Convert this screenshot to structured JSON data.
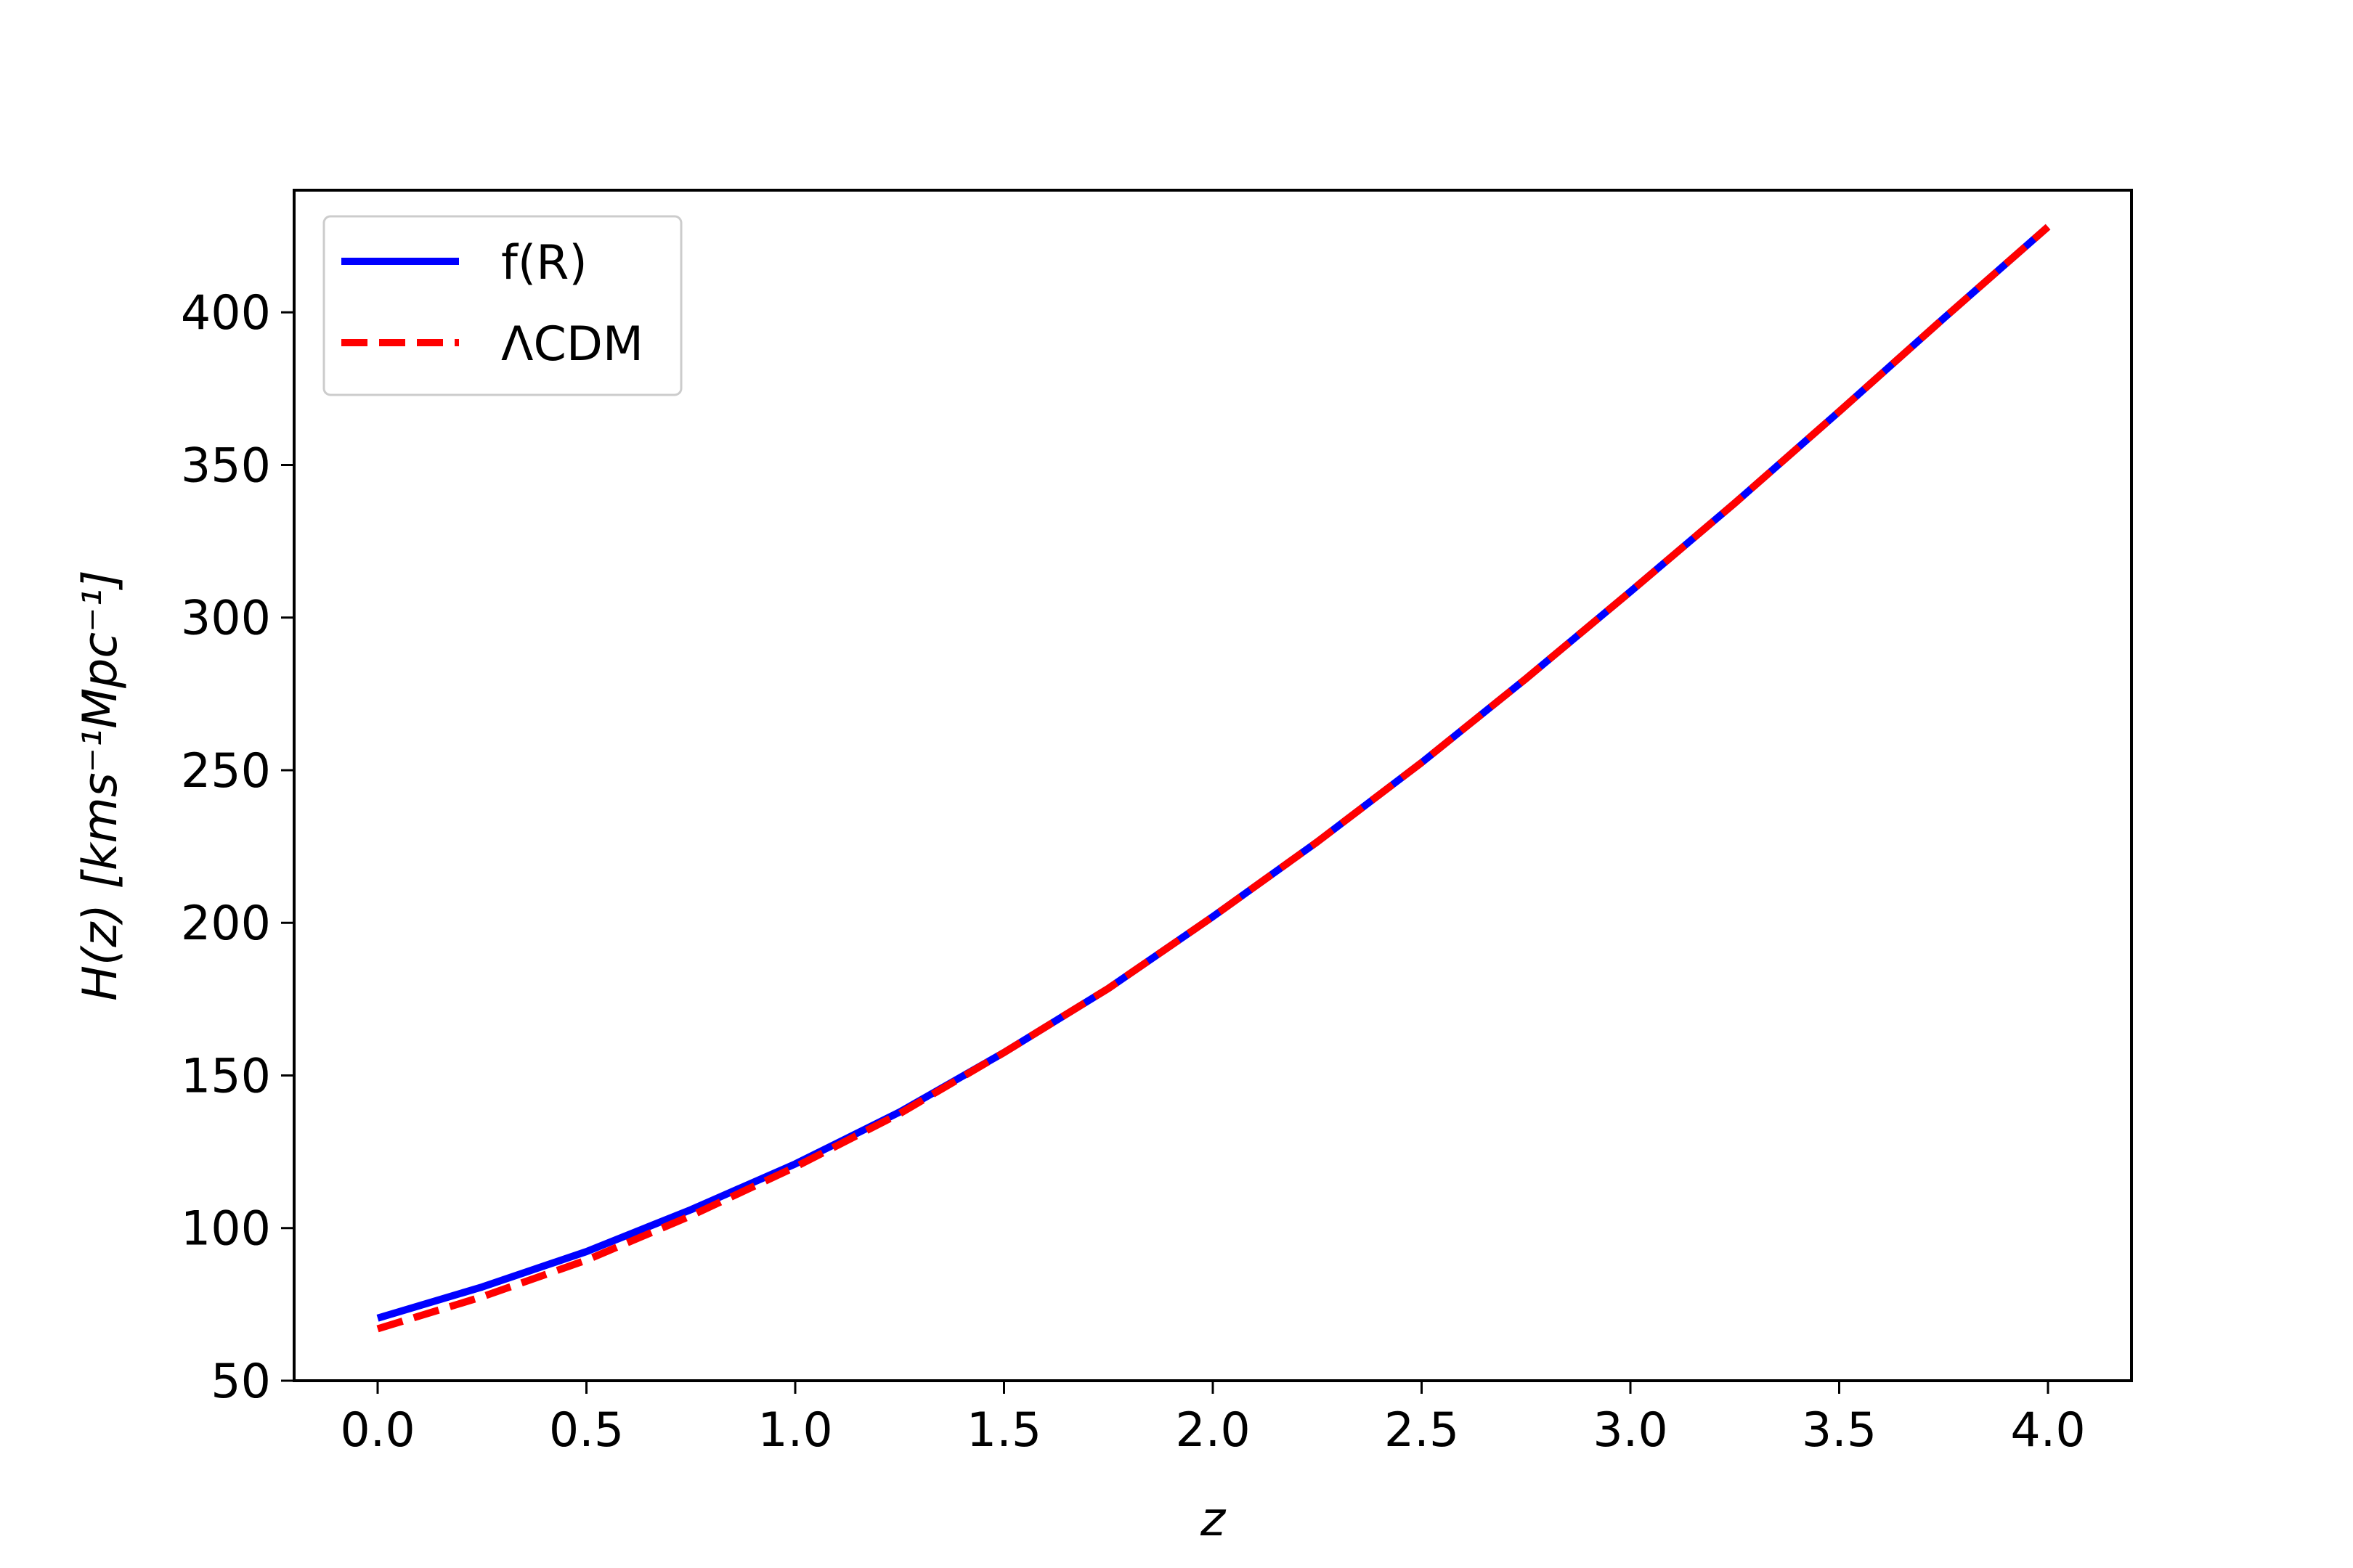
{
  "chart_data": {
    "type": "line",
    "title": "",
    "xlabel": "z",
    "ylabel": "H(z) [kms⁻¹Mpc⁻¹]",
    "xlim": [
      -0.2,
      4.2
    ],
    "ylim": [
      50,
      440
    ],
    "x_ticks": [
      0.0,
      0.5,
      1.0,
      1.5,
      2.0,
      2.5,
      3.0,
      3.5,
      4.0
    ],
    "x_tick_labels": [
      "0.0",
      "0.5",
      "1.0",
      "1.5",
      "2.0",
      "2.5",
      "3.0",
      "3.5",
      "4.0"
    ],
    "y_ticks": [
      50,
      100,
      150,
      200,
      250,
      300,
      350,
      400
    ],
    "y_tick_labels": [
      "50",
      "100",
      "150",
      "200",
      "250",
      "300",
      "350",
      "400"
    ],
    "grid": false,
    "legend_position": "top-left",
    "x": [
      0.0,
      0.25,
      0.5,
      0.75,
      1.0,
      1.25,
      1.5,
      1.75,
      2.0,
      2.25,
      2.5,
      2.75,
      3.0,
      3.25,
      3.5,
      3.75,
      4.0
    ],
    "series": [
      {
        "name": "f(R)",
        "color": "#0000ff",
        "style": "solid",
        "values": [
          70.5,
          80.7,
          92.3,
          106.0,
          121.0,
          138.0,
          157.5,
          178.5,
          202.0,
          226.5,
          252.5,
          280.0,
          308.5,
          337.5,
          367.5,
          398.0,
          428.0
        ]
      },
      {
        "name": "ΛCDM",
        "color": "#ff0000",
        "style": "dashed",
        "values": [
          67.0,
          77.5,
          89.5,
          104.0,
          120.0,
          137.5,
          157.5,
          178.5,
          202.0,
          226.5,
          252.5,
          280.0,
          308.5,
          337.5,
          367.5,
          398.0,
          428.0
        ]
      }
    ]
  }
}
